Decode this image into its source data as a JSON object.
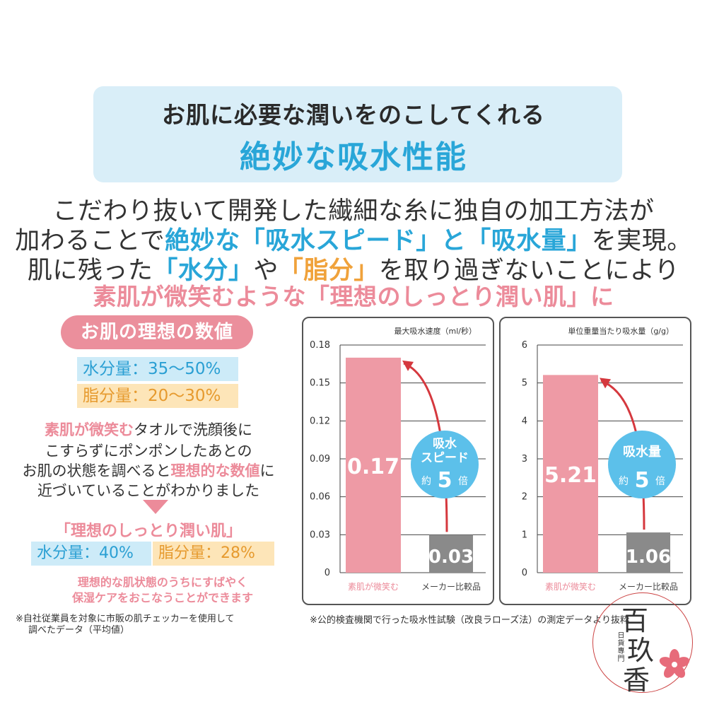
{
  "header": {
    "line1": "お肌に必要な潤いをのこしてくれる",
    "line2": "絶妙な吸水性能"
  },
  "intro": {
    "line1": "こだわり抜いて開発した繊細な糸に独自の加工方法が",
    "line2_a": "加わることで",
    "line2_b": "絶妙な「吸水スピード」と「吸水量」",
    "line2_c": "を実現。",
    "line3_a": "肌に残った",
    "line3_b": "「水分」",
    "line3_c": "や",
    "line3_d": "「脂分」",
    "line3_e": "を取り過ぎないことにより",
    "line4": "素肌が微笑むような「理想のしっとり潤い肌」に"
  },
  "left": {
    "ideal_title": "お肌の理想の数値",
    "water_ideal": "水分量：35〜50%",
    "oil_ideal": "脂分量：20〜30%",
    "body1_a": "素肌が微笑む",
    "body1_b": "タオルで洗顔後に",
    "body2": "こすらずにポンポンしたあとの",
    "body3_a": "お肌の状態を調べると",
    "body3_b": "理想的な数値",
    "body3_c": "に",
    "body4": "近づいていることがわかりました",
    "result_title": "「理想のしっとり潤い肌」",
    "water_result": "水分量：40%",
    "oil_result": "脂分量：28%",
    "note1": "理想的な肌状態のうちにすばやく",
    "note2": "保湿ケアをおこなうことができます",
    "footnote1": "※自社従業員を対象に市販の肌チェッカーを使用して",
    "footnote2": "調べたデータ（平均値）"
  },
  "chart_footnote": "※公的検査機関で行った吸水性試験（改良ラローズ法）の測定データより抜粋",
  "chart_data": [
    {
      "type": "bar",
      "title": "最大吸水速度（ml/秒）",
      "categories": [
        "素肌が微笑む",
        "メーカー比較品"
      ],
      "values": [
        0.17,
        0.03
      ],
      "value_labels": [
        "0.17",
        "0.03"
      ],
      "ylim": [
        0,
        0.18
      ],
      "yticks": [
        "0",
        "0.03",
        "0.06",
        "0.09",
        "0.12",
        "0.15",
        "0.18"
      ],
      "grid": true,
      "colors": [
        "#ee9aa5",
        "#8a8a8a"
      ],
      "badge": {
        "line1": "吸水",
        "line2": "スピード",
        "prefix": "約",
        "number": "5",
        "suffix": "倍"
      }
    },
    {
      "type": "bar",
      "title": "単位重量当たり吸水量（g/g）",
      "categories": [
        "素肌が微笑む",
        "メーカー比較品"
      ],
      "values": [
        5.21,
        1.06
      ],
      "value_labels": [
        "5.21",
        "1.06"
      ],
      "ylim": [
        0,
        6
      ],
      "yticks": [
        "0",
        "1",
        "2",
        "3",
        "4",
        "5",
        "6"
      ],
      "grid": true,
      "colors": [
        "#ee9aa5",
        "#8a8a8a"
      ],
      "badge": {
        "line1": "",
        "line2": "吸水量",
        "prefix": "約",
        "number": "5",
        "suffix": "倍"
      }
    }
  ],
  "stamp": {
    "char1": "百",
    "char2": "玖",
    "char3": "香",
    "sub": "日貨專門"
  },
  "colors": {
    "blue": "#29a6d8",
    "pink": "#ec8b9a",
    "orange": "#f0a23b",
    "badge": "#5cc0ea"
  }
}
